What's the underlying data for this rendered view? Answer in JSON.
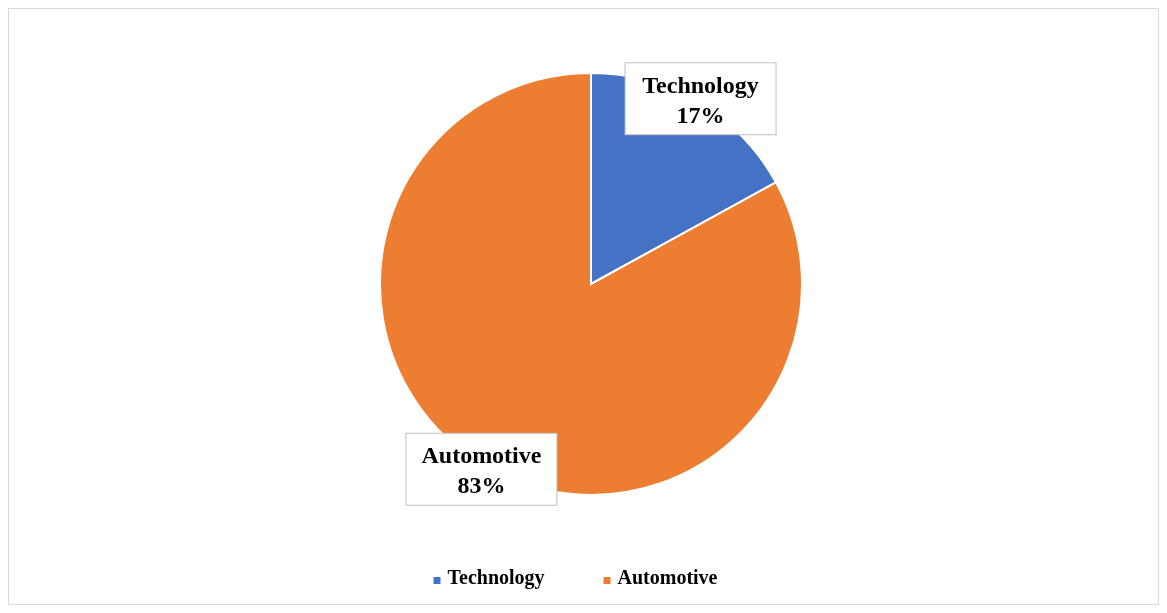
{
  "chart_data": {
    "type": "pie",
    "categories": [
      "Technology",
      "Automotive"
    ],
    "values": [
      17,
      83
    ],
    "colors": [
      "#4472c4",
      "#ed7d31"
    ],
    "value_labels": [
      "17%",
      "83%"
    ],
    "legend": "bottom"
  }
}
